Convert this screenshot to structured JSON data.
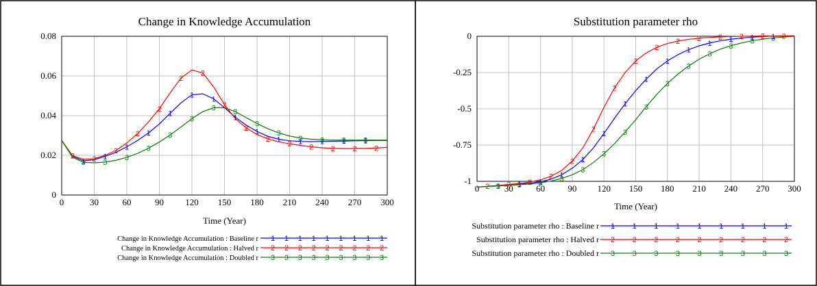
{
  "chart_data": [
    {
      "type": "line",
      "title": "Change in Knowledge Accumulation",
      "xlabel": "Time (Year)",
      "ylabel": "",
      "xlim": [
        0,
        300
      ],
      "ylim": [
        0,
        0.08
      ],
      "xticks": [
        "0",
        "30",
        "60",
        "90",
        "120",
        "150",
        "180",
        "210",
        "240",
        "270",
        "300"
      ],
      "yticks": [
        "0",
        "0.02",
        "0.04",
        "0.06",
        "0.08"
      ],
      "grid": true,
      "legend_position": "bottom",
      "x": [
        0,
        10,
        20,
        30,
        40,
        50,
        60,
        70,
        80,
        90,
        100,
        110,
        120,
        130,
        140,
        150,
        160,
        170,
        180,
        190,
        200,
        210,
        220,
        230,
        240,
        250,
        260,
        270,
        280,
        290,
        300
      ],
      "series": [
        {
          "name": "Change in Knowledge Accumulation : Baseline r",
          "marker": "1",
          "color": "#0000ff",
          "values": [
            0.0275,
            0.0195,
            0.0172,
            0.0178,
            0.0195,
            0.0215,
            0.0243,
            0.0275,
            0.0313,
            0.0358,
            0.0412,
            0.0465,
            0.0505,
            0.051,
            0.0485,
            0.044,
            0.0392,
            0.0352,
            0.032,
            0.0296,
            0.0281,
            0.0273,
            0.027,
            0.0269,
            0.027,
            0.0271,
            0.0272,
            0.0273,
            0.0274,
            0.0275,
            0.0275
          ]
        },
        {
          "name": "Change in Knowledge Accumulation : Halved r",
          "marker": "2",
          "color": "#ff0000",
          "values": [
            0.0275,
            0.0198,
            0.018,
            0.0183,
            0.02,
            0.0225,
            0.0262,
            0.031,
            0.0368,
            0.0435,
            0.0515,
            0.059,
            0.063,
            0.0615,
            0.0545,
            0.0455,
            0.0385,
            0.0338,
            0.0305,
            0.0283,
            0.0268,
            0.0258,
            0.025,
            0.0243,
            0.0238,
            0.0235,
            0.0234,
            0.0234,
            0.0235,
            0.0237,
            0.024
          ]
        },
        {
          "name": "Change in Knowledge Accumulation : Doubled r",
          "marker": "3",
          "color": "#008000",
          "values": [
            0.0275,
            0.019,
            0.0165,
            0.0162,
            0.0166,
            0.0175,
            0.019,
            0.021,
            0.0236,
            0.0267,
            0.0303,
            0.0343,
            0.0385,
            0.042,
            0.044,
            0.044,
            0.042,
            0.039,
            0.036,
            0.0334,
            0.0313,
            0.0297,
            0.0287,
            0.0281,
            0.0278,
            0.0277,
            0.0277,
            0.0277,
            0.0277,
            0.0277,
            0.0277
          ]
        }
      ]
    },
    {
      "type": "line",
      "title": "Substitution parameter rho",
      "xlabel": "Time (Year)",
      "ylabel": "",
      "xlim": [
        0,
        300
      ],
      "ylim": [
        -1,
        0
      ],
      "xticks": [
        "0",
        "30",
        "60",
        "90",
        "120",
        "150",
        "180",
        "210",
        "240",
        "270",
        "300"
      ],
      "yticks": [
        "-1",
        "-0.75",
        "-0.5",
        "-0.25",
        "0"
      ],
      "grid": true,
      "legend_position": "bottom",
      "x": [
        0,
        10,
        20,
        30,
        40,
        50,
        60,
        70,
        80,
        90,
        100,
        110,
        120,
        130,
        140,
        150,
        160,
        170,
        180,
        190,
        200,
        210,
        220,
        230,
        240,
        250,
        260,
        270,
        280,
        290,
        300
      ],
      "series": [
        {
          "name": "Substitution parameter rho : Baseline r",
          "marker": "1",
          "color": "#0000ff",
          "values": [
            -1.04,
            -1.035,
            -1.03,
            -1.025,
            -1.02,
            -1.013,
            -1.003,
            -0.985,
            -0.955,
            -0.91,
            -0.85,
            -0.77,
            -0.67,
            -0.565,
            -0.465,
            -0.375,
            -0.295,
            -0.225,
            -0.17,
            -0.127,
            -0.092,
            -0.066,
            -0.046,
            -0.031,
            -0.02,
            -0.012,
            -0.006,
            -0.002,
            0.001,
            0.002,
            0.003
          ]
        },
        {
          "name": "Substitution parameter rho : Halved r",
          "marker": "2",
          "color": "#ff0000",
          "values": [
            -1.04,
            -1.034,
            -1.028,
            -1.022,
            -1.015,
            -1.005,
            -0.99,
            -0.965,
            -0.925,
            -0.86,
            -0.77,
            -0.64,
            -0.49,
            -0.355,
            -0.25,
            -0.17,
            -0.115,
            -0.076,
            -0.05,
            -0.033,
            -0.021,
            -0.013,
            -0.008,
            -0.004,
            -0.002,
            0.0,
            0.001,
            0.002,
            0.002,
            0.003,
            0.003
          ]
        },
        {
          "name": "Substitution parameter rho : Doubled r",
          "marker": "3",
          "color": "#008000",
          "values": [
            -1.04,
            -1.036,
            -1.032,
            -1.028,
            -1.023,
            -1.018,
            -1.01,
            -0.998,
            -0.98,
            -0.955,
            -0.92,
            -0.87,
            -0.81,
            -0.74,
            -0.66,
            -0.575,
            -0.485,
            -0.4,
            -0.325,
            -0.26,
            -0.205,
            -0.158,
            -0.12,
            -0.089,
            -0.065,
            -0.046,
            -0.031,
            -0.02,
            -0.011,
            -0.005,
            -0.001
          ]
        }
      ]
    }
  ]
}
